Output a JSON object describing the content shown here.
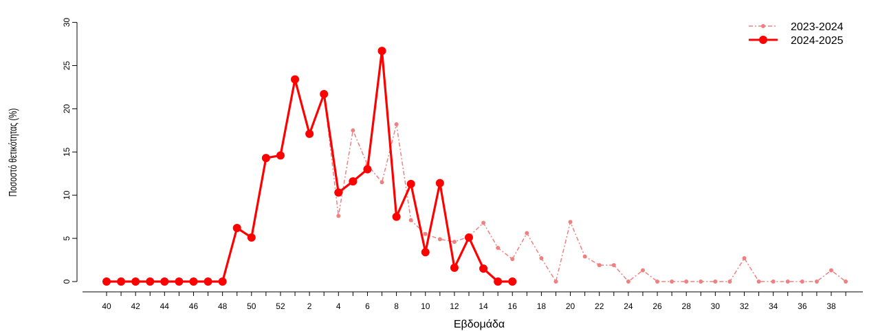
{
  "chart_data": {
    "type": "line",
    "xlabel": "Εβδομάδα",
    "ylabel": "Ποσοστό θετικότητας (%)",
    "ylim": [
      0,
      30
    ],
    "yticks": [
      0,
      5,
      10,
      15,
      20,
      25,
      30
    ],
    "weeks": [
      40,
      41,
      42,
      43,
      44,
      45,
      46,
      47,
      48,
      49,
      50,
      51,
      52,
      1,
      2,
      3,
      4,
      5,
      6,
      7,
      8,
      9,
      10,
      11,
      12,
      13,
      14,
      15,
      16,
      17,
      18,
      19,
      20,
      21,
      22,
      23,
      24,
      25,
      26,
      27,
      28,
      29,
      30,
      31,
      32,
      33,
      34,
      35,
      36,
      37,
      38,
      39
    ],
    "week_tick_labels": [
      "40",
      "",
      "42",
      "",
      "44",
      "",
      "46",
      "",
      "48",
      "",
      "50",
      "",
      "52",
      "",
      "2",
      "",
      "4",
      "",
      "6",
      "",
      "8",
      "",
      "10",
      "",
      "12",
      "",
      "14",
      "",
      "16",
      "",
      "18",
      "",
      "20",
      "",
      "22",
      "",
      "24",
      "",
      "26",
      "",
      "28",
      "",
      "30",
      "",
      "32",
      "",
      "34",
      "",
      "36",
      "",
      "38",
      ""
    ],
    "grid": false,
    "legend_position": "top-right",
    "series": [
      {
        "name": "2023-2024",
        "color": "#f08080",
        "style": "dashed-small-points",
        "values": [
          0,
          0,
          0,
          0,
          0,
          0,
          0,
          0,
          0,
          6.2,
          5.1,
          14.3,
          14.6,
          23.4,
          17.1,
          21.7,
          7.6,
          17.5,
          13.5,
          11.5,
          18.2,
          7.1,
          5.5,
          4.9,
          4.6,
          5.2,
          6.8,
          3.9,
          2.6,
          5.6,
          2.7,
          0,
          6.9,
          2.9,
          1.9,
          1.9,
          0,
          1.3,
          0,
          0,
          0,
          0,
          0,
          0,
          2.7,
          0,
          0,
          0,
          0,
          0,
          1.3,
          0
        ]
      },
      {
        "name": "2024-2025",
        "color": "#ff0000",
        "style": "solid-large-points",
        "values": [
          0,
          0,
          0,
          0,
          0,
          0,
          0,
          0,
          0,
          6.2,
          5.1,
          14.3,
          14.6,
          23.4,
          17.1,
          21.7,
          10.3,
          11.6,
          13.0,
          26.7,
          7.5,
          11.3,
          3.4,
          11.4,
          1.6,
          5.1,
          1.5,
          0,
          0
        ]
      }
    ]
  }
}
